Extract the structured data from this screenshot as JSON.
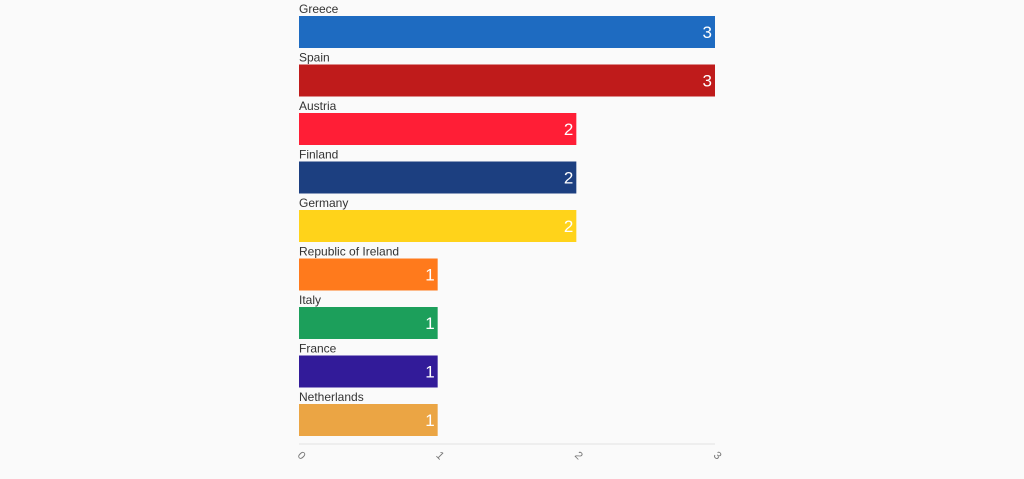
{
  "chart_data": {
    "type": "bar",
    "orientation": "horizontal",
    "title": "",
    "xlabel": "",
    "ylabel": "",
    "xlim": [
      0,
      3
    ],
    "grid": false,
    "legend": "none",
    "categories": [
      "Greece",
      "Spain",
      "Austria",
      "Finland",
      "Germany",
      "Republic of Ireland",
      "Italy",
      "France",
      "Netherlands"
    ],
    "values": [
      3,
      3,
      2,
      2,
      2,
      1,
      1,
      1,
      1
    ],
    "colors": [
      "#1e6bc1",
      "#bf1b1b",
      "#ff1e36",
      "#1c3f80",
      "#ffd31a",
      "#ff7a1c",
      "#1c9f5b",
      "#321b99",
      "#eba544"
    ],
    "ticks": [
      "0",
      "1",
      "2",
      "3"
    ]
  }
}
